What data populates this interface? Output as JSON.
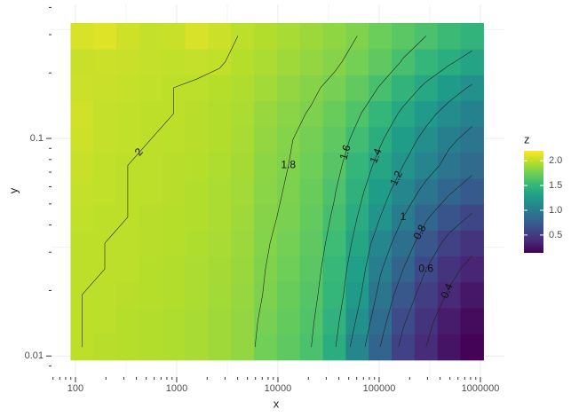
{
  "chart_data": {
    "type": "heatmap",
    "x_label": "x",
    "y_label": "y",
    "legend_title": "z",
    "x_log": true,
    "y_log": true,
    "xlim": [
      58,
      1726000
    ],
    "ylim": [
      0.008,
      0.413
    ],
    "xticks": [
      100,
      1000,
      10000,
      100000,
      1000000
    ],
    "yticks": [
      0.01,
      0.1
    ],
    "grid": true,
    "legend_position": "right",
    "colormap": [
      "#440154",
      "#482878",
      "#3e4989",
      "#31688e",
      "#26828e",
      "#1f9e89",
      "#35b779",
      "#6ece58",
      "#b5de2b",
      "#fde725"
    ],
    "zlim": [
      0.14,
      2.2
    ],
    "colorbar_ticks": [
      0.5,
      {
        "value": 1,
        "label": "1.0"
      },
      1.5,
      {
        "value": 2,
        "label": "2.0"
      }
    ],
    "contour_levels": [
      0.4,
      0.6,
      0.8,
      1,
      1.2,
      1.4,
      1.6,
      1.8,
      2
    ],
    "x": [
      116,
      195,
      329,
      554,
      933,
      1574,
      2650,
      4467,
      7530,
      12690,
      21380,
      36060,
      60700,
      102300,
      172600,
      290400,
      489800,
      826000
    ],
    "y": [
      0.011,
      0.0145,
      0.0191,
      0.0251,
      0.033,
      0.0435,
      0.0571,
      0.0752,
      0.0989,
      0.13,
      0.171,
      0.225,
      0.296
    ],
    "z": [
      [
        2.0,
        1.98,
        1.97,
        1.96,
        1.95,
        1.93,
        1.9,
        1.86,
        1.75,
        1.68,
        1.6,
        1.42,
        1.1,
        0.8,
        0.55,
        0.4,
        0.25,
        0.15
      ],
      [
        2.0,
        1.99,
        1.97,
        1.96,
        1.95,
        1.93,
        1.9,
        1.86,
        1.77,
        1.7,
        1.62,
        1.46,
        1.18,
        0.87,
        0.62,
        0.45,
        0.3,
        0.2
      ],
      [
        2.0,
        1.99,
        1.98,
        1.97,
        1.96,
        1.94,
        1.91,
        1.87,
        1.79,
        1.72,
        1.64,
        1.5,
        1.25,
        0.95,
        0.7,
        0.52,
        0.38,
        0.27
      ],
      [
        2.0,
        2.0,
        1.99,
        1.97,
        1.96,
        1.94,
        1.92,
        1.88,
        1.8,
        1.74,
        1.66,
        1.52,
        1.3,
        1.02,
        0.8,
        0.6,
        0.45,
        0.35
      ],
      [
        2.0,
        2.0,
        1.99,
        1.98,
        1.97,
        1.95,
        1.93,
        1.89,
        1.81,
        1.76,
        1.68,
        1.55,
        1.35,
        1.1,
        0.9,
        0.7,
        0.55,
        0.45
      ],
      [
        2.01,
        2.0,
        2.0,
        1.98,
        1.97,
        1.96,
        1.94,
        1.9,
        1.82,
        1.78,
        1.7,
        1.58,
        1.4,
        1.2,
        1.0,
        0.82,
        0.68,
        0.58
      ],
      [
        2.02,
        2.01,
        2.0,
        1.99,
        1.98,
        1.96,
        1.94,
        1.91,
        1.83,
        1.79,
        1.72,
        1.61,
        1.45,
        1.28,
        1.1,
        0.95,
        0.82,
        0.72
      ],
      [
        2.03,
        2.01,
        2.0,
        1.99,
        1.98,
        1.97,
        1.95,
        1.92,
        1.84,
        1.8,
        1.74,
        1.65,
        1.5,
        1.35,
        1.2,
        1.07,
        0.95,
        0.85
      ],
      [
        2.05,
        2.02,
        2.01,
        2.0,
        1.99,
        1.98,
        1.96,
        1.93,
        1.86,
        1.81,
        1.76,
        1.68,
        1.56,
        1.42,
        1.28,
        1.15,
        1.03,
        0.95
      ],
      [
        2.06,
        2.02,
        2.01,
        2.0,
        2.0,
        1.98,
        1.96,
        1.94,
        1.88,
        1.83,
        1.79,
        1.72,
        1.62,
        1.5,
        1.37,
        1.25,
        1.14,
        1.05
      ],
      [
        2.04,
        2.03,
        2.02,
        2.01,
        2.0,
        1.99,
        1.97,
        1.95,
        1.91,
        1.86,
        1.82,
        1.77,
        1.69,
        1.59,
        1.48,
        1.37,
        1.27,
        1.18
      ],
      [
        2.03,
        2.04,
        2.03,
        2.02,
        2.01,
        2.02,
        2.01,
        1.97,
        1.94,
        1.9,
        1.86,
        1.82,
        1.76,
        1.68,
        1.59,
        1.5,
        1.42,
        1.34
      ],
      [
        2.08,
        2.1,
        2.05,
        2.02,
        2.03,
        2.08,
        2.04,
        1.99,
        1.96,
        1.93,
        1.89,
        1.85,
        1.8,
        1.73,
        1.66,
        1.6,
        1.54,
        1.48
      ]
    ]
  }
}
